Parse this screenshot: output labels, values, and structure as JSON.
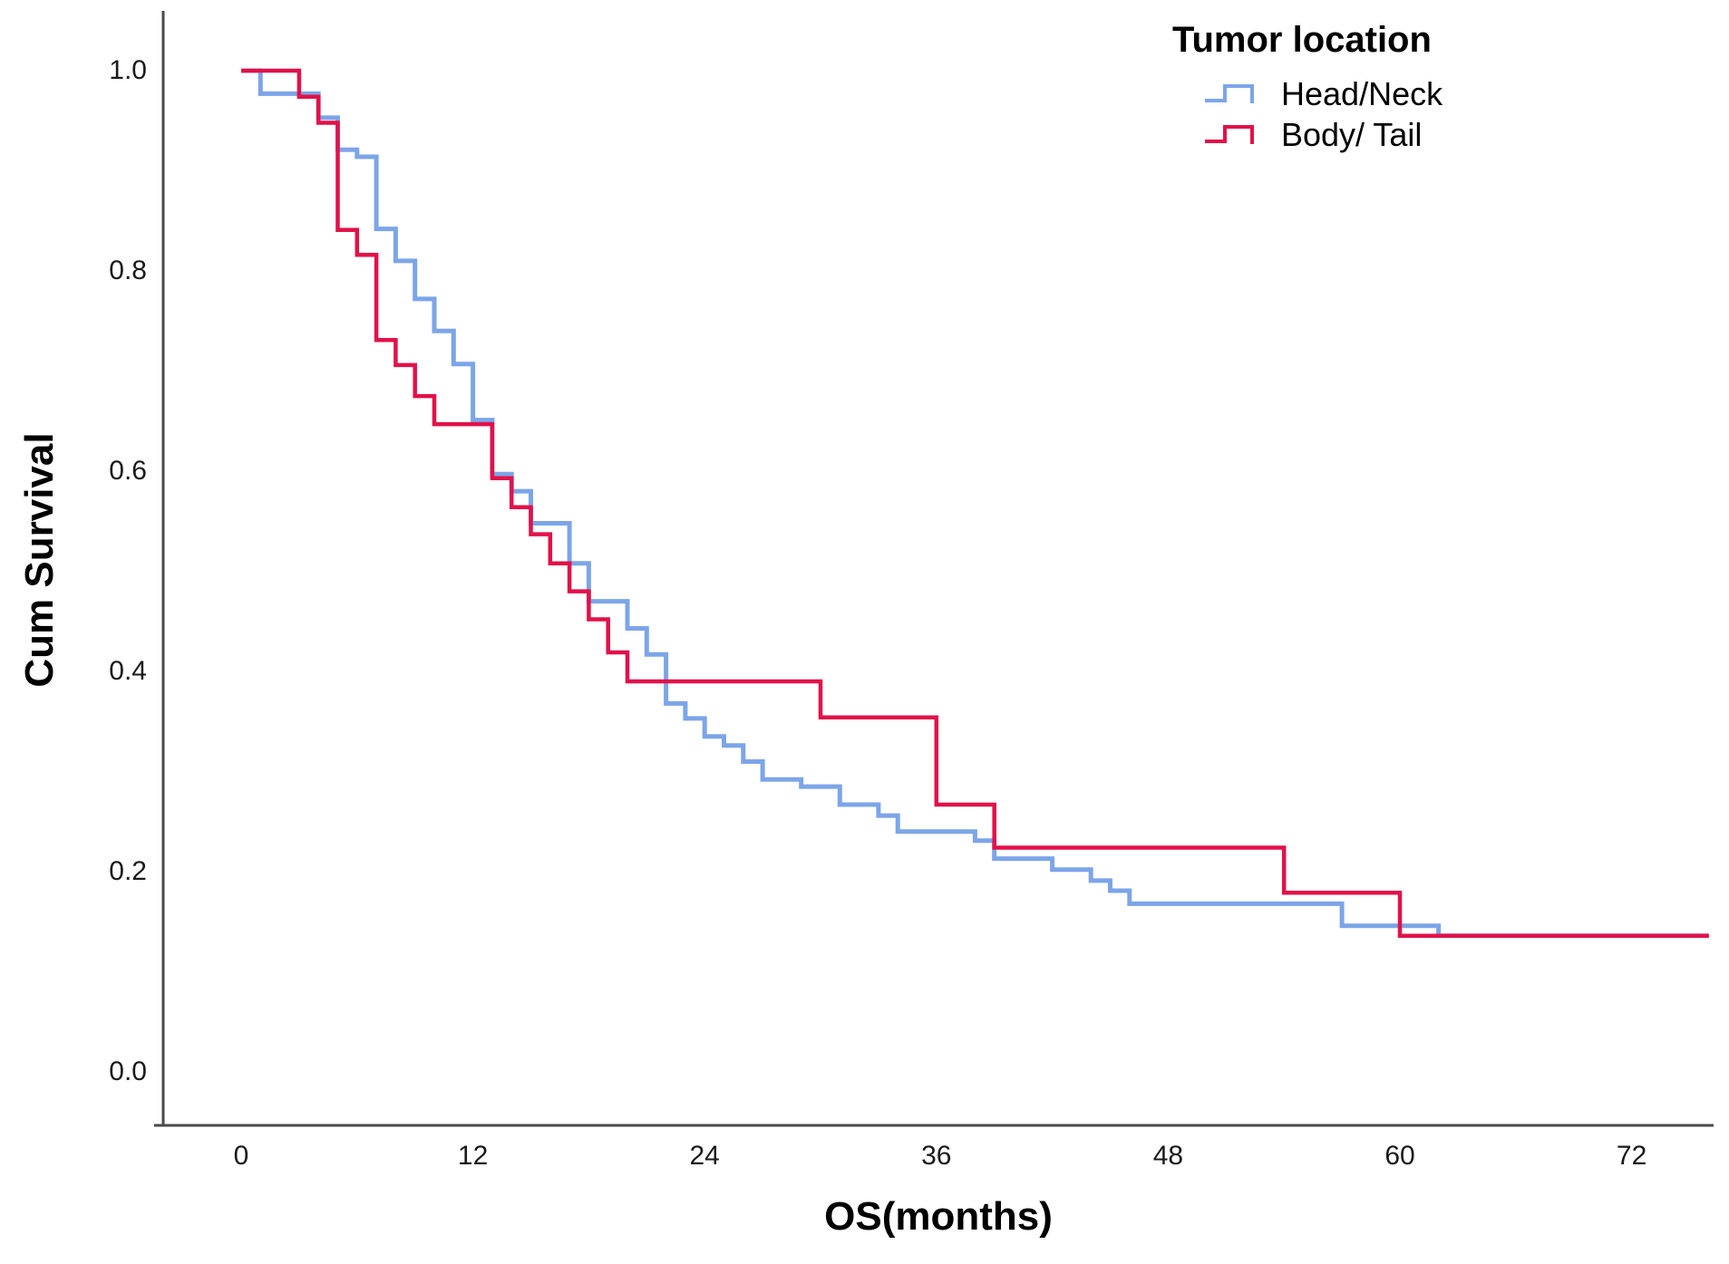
{
  "figure": {
    "background": "#ffffff",
    "axis_color": "#4a4a4a"
  },
  "chart_data": {
    "type": "line",
    "subtype": "kaplan-meier-step-survival",
    "title": "",
    "xlabel": "OS(months)",
    "ylabel": "Cum Survival",
    "xlim": [
      -4,
      77
    ],
    "ylim": [
      -0.05,
      1.05
    ],
    "x_ticks": [
      "0",
      "12",
      "24",
      "36",
      "48",
      "60",
      "72"
    ],
    "x_tick_values": [
      0,
      12,
      24,
      36,
      48,
      60,
      72
    ],
    "y_ticks": [
      "0.0",
      "0.2",
      "0.4",
      "0.6",
      "0.8",
      "1.0"
    ],
    "y_tick_values": [
      0.0,
      0.2,
      0.4,
      0.6,
      0.8,
      1.0
    ],
    "grid": false,
    "legend": {
      "title": "Tumor location",
      "position": "top-right"
    },
    "series": [
      {
        "name": "Head/Neck",
        "color": "#7CA5E8",
        "end_time": 76,
        "points": [
          [
            0,
            1.0
          ],
          [
            1,
            0.977
          ],
          [
            4,
            0.953
          ],
          [
            5,
            0.921
          ],
          [
            6,
            0.914
          ],
          [
            7,
            0.842
          ],
          [
            8,
            0.81
          ],
          [
            9,
            0.772
          ],
          [
            10,
            0.74
          ],
          [
            11,
            0.707
          ],
          [
            12,
            0.651
          ],
          [
            13,
            0.597
          ],
          [
            14,
            0.58
          ],
          [
            15,
            0.548
          ],
          [
            17,
            0.508
          ],
          [
            18,
            0.47
          ],
          [
            20,
            0.443
          ],
          [
            21,
            0.417
          ],
          [
            22,
            0.368
          ],
          [
            23,
            0.353
          ],
          [
            24,
            0.335
          ],
          [
            25,
            0.326
          ],
          [
            26,
            0.31
          ],
          [
            27,
            0.292
          ],
          [
            29,
            0.285
          ],
          [
            31,
            0.267
          ],
          [
            33,
            0.256
          ],
          [
            34,
            0.24
          ],
          [
            38,
            0.231
          ],
          [
            39,
            0.213
          ],
          [
            42,
            0.202
          ],
          [
            44,
            0.191
          ],
          [
            45,
            0.181
          ],
          [
            46,
            0.168
          ],
          [
            57,
            0.146
          ],
          [
            62,
            0.136
          ]
        ]
      },
      {
        "name": "Body/ Tail",
        "color": "#E21149",
        "end_time": 76,
        "points": [
          [
            0,
            1.0
          ],
          [
            3,
            0.974
          ],
          [
            4,
            0.948
          ],
          [
            5,
            0.841
          ],
          [
            6,
            0.816
          ],
          [
            7,
            0.731
          ],
          [
            8,
            0.706
          ],
          [
            9,
            0.675
          ],
          [
            10,
            0.647
          ],
          [
            13,
            0.593
          ],
          [
            14,
            0.564
          ],
          [
            15,
            0.537
          ],
          [
            16,
            0.508
          ],
          [
            17,
            0.48
          ],
          [
            18,
            0.452
          ],
          [
            19,
            0.419
          ],
          [
            20,
            0.39
          ],
          [
            30,
            0.354
          ],
          [
            36,
            0.267
          ],
          [
            39,
            0.224
          ],
          [
            54,
            0.179
          ],
          [
            60,
            0.136
          ]
        ]
      }
    ]
  }
}
